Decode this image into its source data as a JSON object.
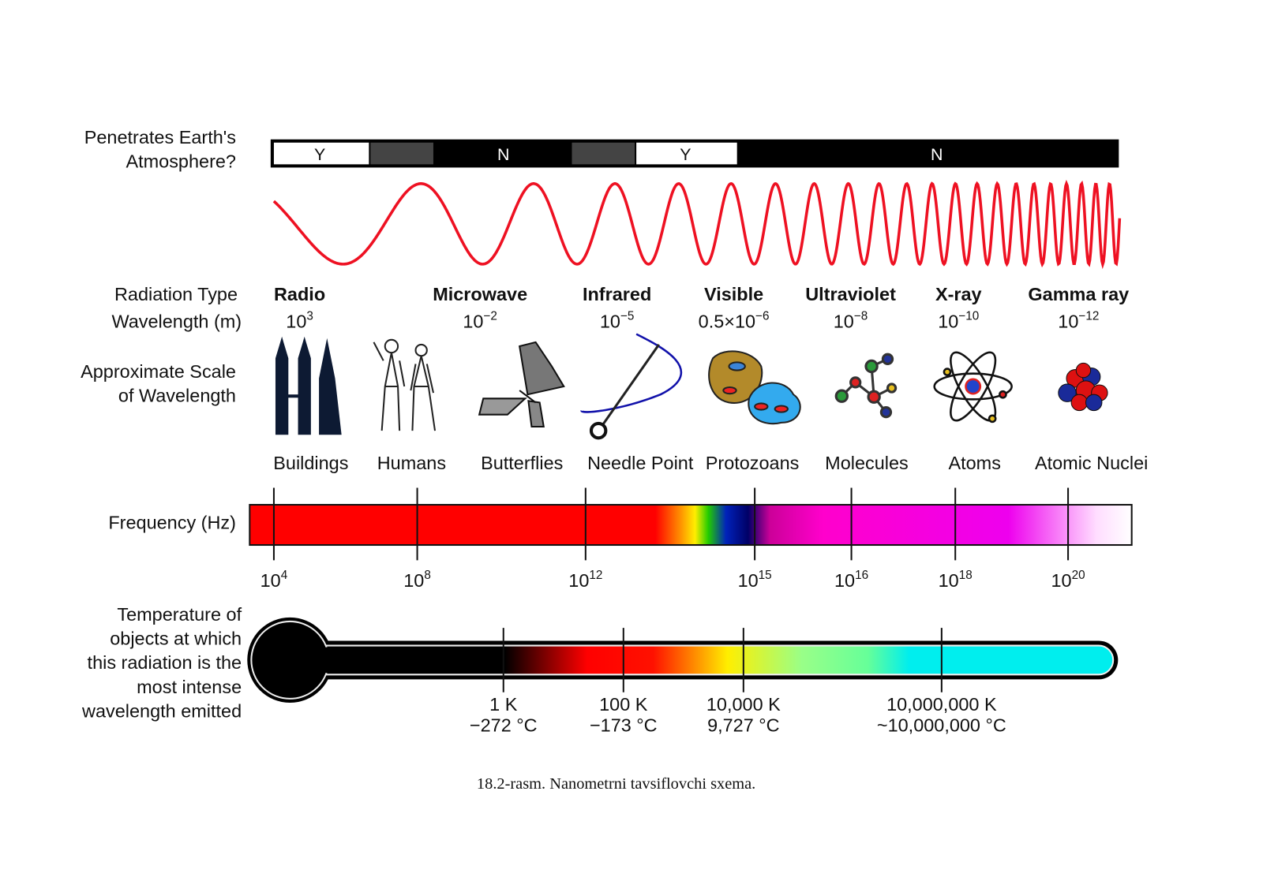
{
  "atmosphere": {
    "label": [
      "Penetrates Earth's",
      "Atmosphere?"
    ],
    "segments": [
      "Y",
      "N",
      "Y",
      "N"
    ]
  },
  "radiation": {
    "type_label": "Radiation Type",
    "wavelength_label": "Wavelength (m)",
    "types": [
      {
        "name": "Radio",
        "wavelength": {
          "base": "10",
          "exp": "3"
        }
      },
      {
        "name": "Microwave",
        "wavelength": {
          "base": "10",
          "exp": "−2"
        }
      },
      {
        "name": "Infrared",
        "wavelength": {
          "base": "10",
          "exp": "−5"
        }
      },
      {
        "name": "Visible",
        "wavelength": {
          "base": "0.5×10",
          "exp": "−6"
        }
      },
      {
        "name": "Ultraviolet",
        "wavelength": {
          "base": "10",
          "exp": "−8"
        }
      },
      {
        "name": "X-ray",
        "wavelength": {
          "base": "10",
          "exp": "−10"
        }
      },
      {
        "name": "Gamma ray",
        "wavelength": {
          "base": "10",
          "exp": "−12"
        }
      }
    ]
  },
  "scale": {
    "label": [
      "Approximate Scale",
      "of Wavelength"
    ],
    "items": [
      "Buildings",
      "Humans",
      "Butterflies",
      "Needle Point",
      "Protozoans",
      "Molecules",
      "Atoms",
      "Atomic Nuclei"
    ]
  },
  "frequency": {
    "label": "Frequency (Hz)",
    "ticks": [
      {
        "base": "10",
        "exp": "4"
      },
      {
        "base": "10",
        "exp": "8"
      },
      {
        "base": "10",
        "exp": "12"
      },
      {
        "base": "10",
        "exp": "15"
      },
      {
        "base": "10",
        "exp": "16"
      },
      {
        "base": "10",
        "exp": "18"
      },
      {
        "base": "10",
        "exp": "20"
      }
    ]
  },
  "temperature": {
    "label": [
      "Temperature of",
      "objects at which",
      "this radiation is the",
      "most intense",
      "wavelength emitted"
    ],
    "ticks": [
      {
        "kelvin": "1 K",
        "celsius": "−272 °C"
      },
      {
        "kelvin": "100 K",
        "celsius": "−173 °C"
      },
      {
        "kelvin": "10,000 K",
        "celsius": "9,727 °C"
      },
      {
        "kelvin": "10,000,000 K",
        "celsius": "~10,000,000 °C"
      }
    ]
  },
  "caption": "18.2-rasm. Nanometrni tavsiflovchi sxema."
}
